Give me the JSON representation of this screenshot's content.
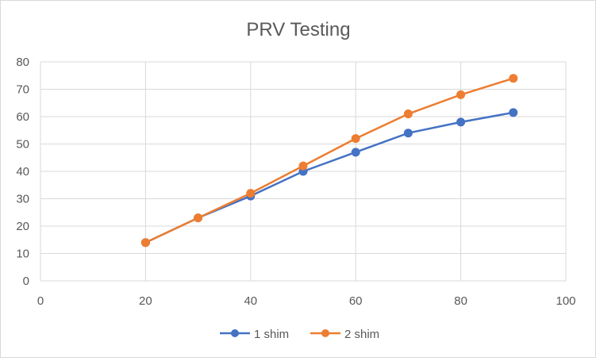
{
  "chart_data": {
    "type": "scatter",
    "title": "PRV Testing",
    "xlabel": "",
    "ylabel": "",
    "xlim": [
      0,
      100
    ],
    "ylim": [
      0,
      80
    ],
    "xticks": [
      0,
      20,
      40,
      60,
      80,
      100
    ],
    "yticks": [
      0,
      10,
      20,
      30,
      40,
      50,
      60,
      70,
      80
    ],
    "grid": true,
    "legend_position": "bottom",
    "series": [
      {
        "name": "1 shim",
        "color": "#4472C4",
        "x": [
          20,
          30,
          40,
          50,
          60,
          70,
          80,
          90
        ],
        "y": [
          14,
          23,
          31,
          40,
          47,
          54,
          58,
          61.5
        ]
      },
      {
        "name": "2 shim",
        "color": "#ED7D31",
        "x": [
          20,
          30,
          40,
          50,
          60,
          70,
          80,
          90
        ],
        "y": [
          14,
          23,
          32,
          42,
          52,
          61,
          68,
          74
        ]
      }
    ]
  }
}
